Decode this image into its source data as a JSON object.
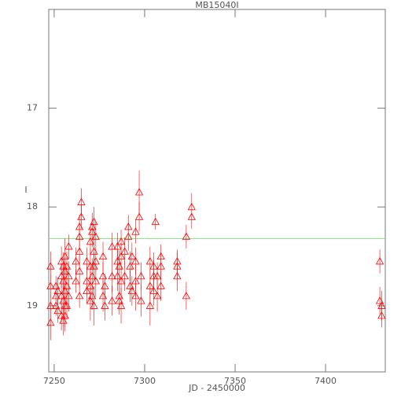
{
  "chart_data": {
    "type": "scatter",
    "title": "MB15040I",
    "xlabel": "JD - 2450000",
    "ylabel": "I",
    "xlim": [
      7247,
      7433
    ],
    "ylim": [
      19.67,
      16.0
    ],
    "xticks": [
      7250,
      7300,
      7350,
      7400
    ],
    "yticks": [
      17,
      18,
      19
    ],
    "reference_line": 18.32,
    "reference_color": "#88dd88",
    "series": [
      {
        "color": "#ff0000",
        "x": [
          7248,
          7248,
          7248,
          7248,
          7251,
          7251,
          7251,
          7252,
          7252,
          7254,
          7254,
          7254,
          7254,
          7255,
          7255,
          7255,
          7255,
          7256,
          7256,
          7256,
          7256,
          7256,
          7257,
          7257,
          7257,
          7258,
          7258,
          7258,
          7262,
          7262,
          7264,
          7264,
          7264,
          7264,
          7264,
          7265,
          7265,
          7268,
          7268,
          7268,
          7270,
          7270,
          7270,
          7270,
          7271,
          7271,
          7271,
          7271,
          7272,
          7272,
          7272,
          7272,
          7273,
          7273,
          7273,
          7277,
          7277,
          7277,
          7278,
          7278,
          7282,
          7282,
          7282,
          7285,
          7285,
          7285,
          7286,
          7286,
          7286,
          7287,
          7287,
          7287,
          7287,
          7289,
          7289,
          7291,
          7291,
          7292,
          7292,
          7293,
          7293,
          7295,
          7295,
          7295,
          7295,
          7297,
          7297,
          7298,
          7298,
          7303,
          7303,
          7303,
          7305,
          7305,
          7305,
          7306,
          7307,
          7307,
          7309,
          7309,
          7309,
          7318,
          7318,
          7318,
          7323,
          7323,
          7326,
          7326,
          7430,
          7430,
          7431,
          7431
        ],
        "values": [
          18.6,
          18.8,
          19.0,
          19.17,
          18.8,
          18.9,
          19.0,
          18.85,
          19.05,
          18.55,
          18.7,
          18.9,
          19.1,
          18.6,
          18.75,
          18.95,
          19.15,
          18.5,
          18.65,
          18.85,
          19.0,
          19.1,
          18.6,
          18.8,
          19.0,
          18.4,
          18.7,
          18.9,
          18.55,
          18.75,
          18.2,
          18.3,
          18.45,
          18.65,
          18.9,
          17.95,
          18.1,
          18.55,
          18.75,
          18.85,
          18.35,
          18.6,
          18.8,
          18.95,
          18.2,
          18.25,
          18.7,
          18.9,
          18.15,
          18.45,
          18.6,
          19.0,
          18.3,
          18.55,
          18.75,
          18.5,
          18.7,
          18.9,
          18.8,
          19.0,
          18.4,
          18.7,
          18.95,
          18.4,
          18.55,
          18.7,
          18.6,
          18.9,
          18.95,
          18.35,
          18.5,
          18.75,
          19.0,
          18.45,
          18.7,
          18.2,
          18.3,
          18.6,
          18.8,
          18.5,
          18.85,
          18.25,
          18.55,
          18.75,
          18.9,
          17.85,
          18.1,
          18.7,
          18.95,
          18.55,
          18.8,
          19.0,
          18.6,
          18.7,
          18.85,
          18.15,
          18.7,
          18.9,
          18.5,
          18.6,
          18.8,
          18.55,
          18.6,
          18.7,
          18.3,
          18.9,
          18.1,
          18.0,
          18.55,
          18.95,
          19.0,
          19.1
        ],
        "errors": [
          0.15,
          0.12,
          0.14,
          0.18,
          0.1,
          0.12,
          0.1,
          0.14,
          0.12,
          0.15,
          0.12,
          0.18,
          0.15,
          0.14,
          0.16,
          0.2,
          0.15,
          0.18,
          0.15,
          0.2,
          0.22,
          0.16,
          0.15,
          0.18,
          0.14,
          0.12,
          0.15,
          0.16,
          0.14,
          0.12,
          0.12,
          0.14,
          0.15,
          0.16,
          0.12,
          0.14,
          0.12,
          0.14,
          0.15,
          0.12,
          0.15,
          0.18,
          0.16,
          0.2,
          0.14,
          0.16,
          0.18,
          0.14,
          0.15,
          0.16,
          0.14,
          0.2,
          0.15,
          0.12,
          0.16,
          0.15,
          0.14,
          0.16,
          0.12,
          0.15,
          0.14,
          0.16,
          0.15,
          0.14,
          0.12,
          0.15,
          0.16,
          0.15,
          0.14,
          0.12,
          0.14,
          0.16,
          0.18,
          0.14,
          0.15,
          0.12,
          0.14,
          0.15,
          0.16,
          0.14,
          0.15,
          0.12,
          0.14,
          0.16,
          0.15,
          0.22,
          0.15,
          0.14,
          0.16,
          0.15,
          0.16,
          0.2,
          0.14,
          0.16,
          0.15,
          0.08,
          0.14,
          0.16,
          0.12,
          0.14,
          0.15,
          0.12,
          0.14,
          0.15,
          0.12,
          0.14,
          0.12,
          0.14,
          0.12,
          0.14,
          0.15,
          0.12
        ]
      }
    ]
  }
}
